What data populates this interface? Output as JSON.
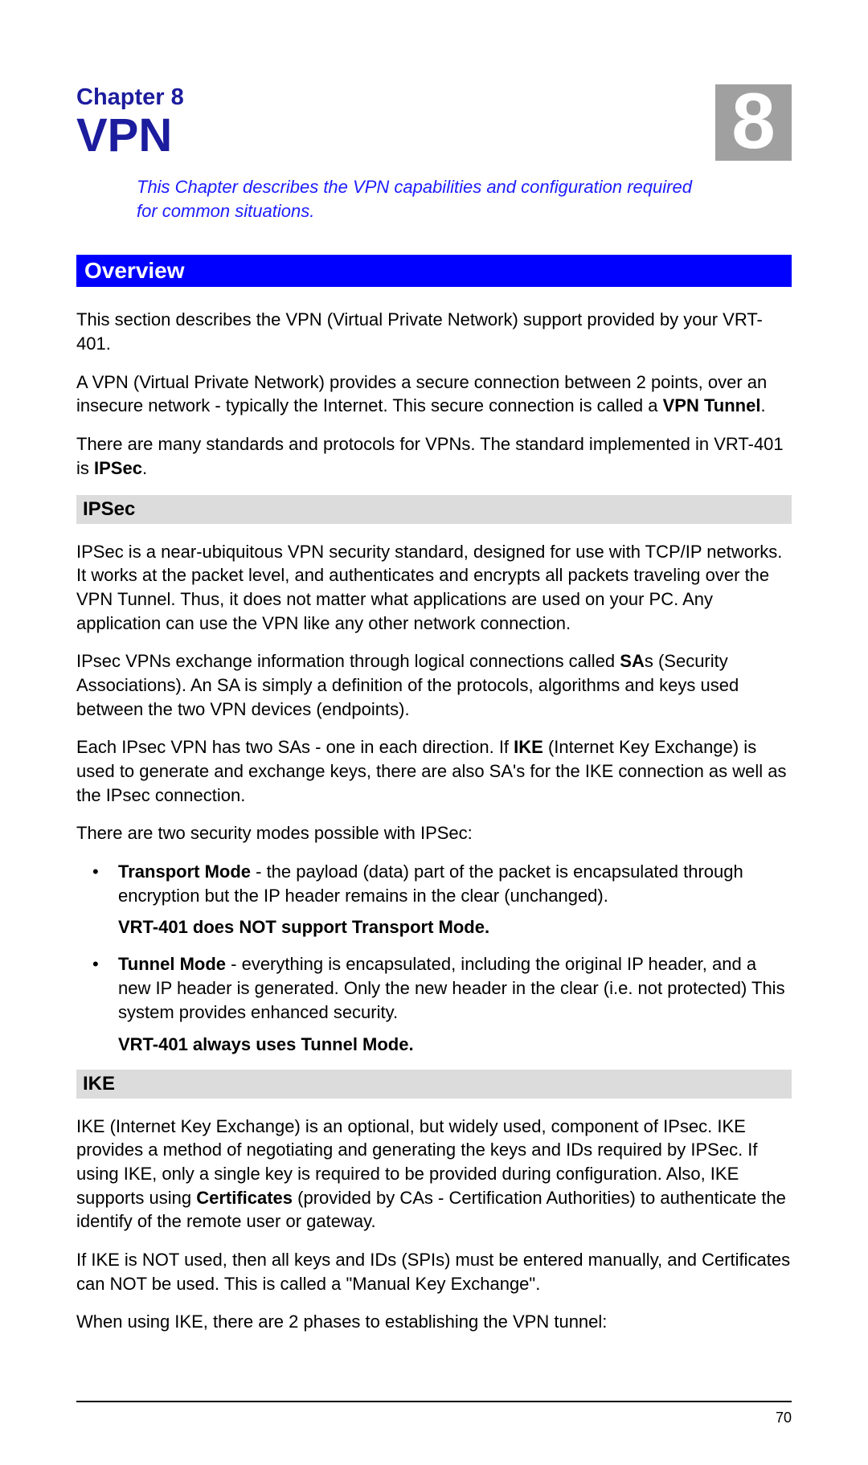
{
  "chapter": {
    "label": "Chapter 8",
    "title": "VPN",
    "badge": "8",
    "intro": "This Chapter describes the VPN capabilities and configuration required for common situations."
  },
  "overview": {
    "heading": "Overview",
    "p1": "This section describes the VPN (Virtual Private Network) support provided by your VRT-401.",
    "p2a": "A VPN (Virtual Private Network) provides a secure connection between 2 points, over an insecure network - typically the Internet. This secure connection is called a ",
    "p2b": "VPN Tunnel",
    "p2c": ".",
    "p3a": "There are many standards and protocols for VPNs. The standard implemented in VRT-401 is ",
    "p3b": "IPSec",
    "p3c": "."
  },
  "ipsec": {
    "heading": "IPSec",
    "p1": "IPSec is a near-ubiquitous VPN security standard, designed for use with TCP/IP networks. It works at the packet level, and authenticates and encrypts all packets traveling over the VPN Tunnel. Thus, it does not matter what applications are used on your PC. Any application can use the VPN like any other network connection.",
    "p2a": "IPsec VPNs exchange information through logical connections called ",
    "p2b": "SA",
    "p2c": "s (Security Associations). An SA is simply a definition of the protocols, algorithms and keys used between the two VPN devices (endpoints).",
    "p3a": "Each IPsec VPN has two SAs - one in each direction. If ",
    "p3b": "IKE",
    "p3c": " (Internet Key Exchange) is used to generate and exchange keys, there are also SA's for the IKE connection as well as the IPsec connection.",
    "p4": "There are two security modes possible with IPSec:",
    "bullet1a": "Transport Mode",
    "bullet1b": " - the payload (data) part of the packet is encapsulated through encryption but the IP header remains in the clear (unchanged).",
    "note1": "VRT-401 does NOT support Transport Mode.",
    "bullet2a": "Tunnel Mode",
    "bullet2b": " - everything is encapsulated, including the original IP header, and a new IP header is generated. Only the new header in the clear (i.e. not protected) This system provides enhanced security.",
    "note2": "VRT-401 always uses Tunnel Mode."
  },
  "ike": {
    "heading": "IKE",
    "p1a": "IKE (Internet Key Exchange) is an optional, but widely used, component of IPsec. IKE provides a method of negotiating and generating the keys and IDs required by IPSec. If using IKE, only a single key is required to be provided during configuration. Also, IKE supports using ",
    "p1b": "Certificates",
    "p1c": " (provided by CAs - Certification Authorities) to authenticate the identify of the remote user or gateway.",
    "p2": "If IKE is NOT used, then all keys and IDs (SPIs) must be entered manually, and Certificates can NOT be used. This is called a \"Manual Key Exchange\".",
    "p3": "When using IKE, there are 2 phases to establishing the VPN tunnel:"
  },
  "pageNumber": "70"
}
